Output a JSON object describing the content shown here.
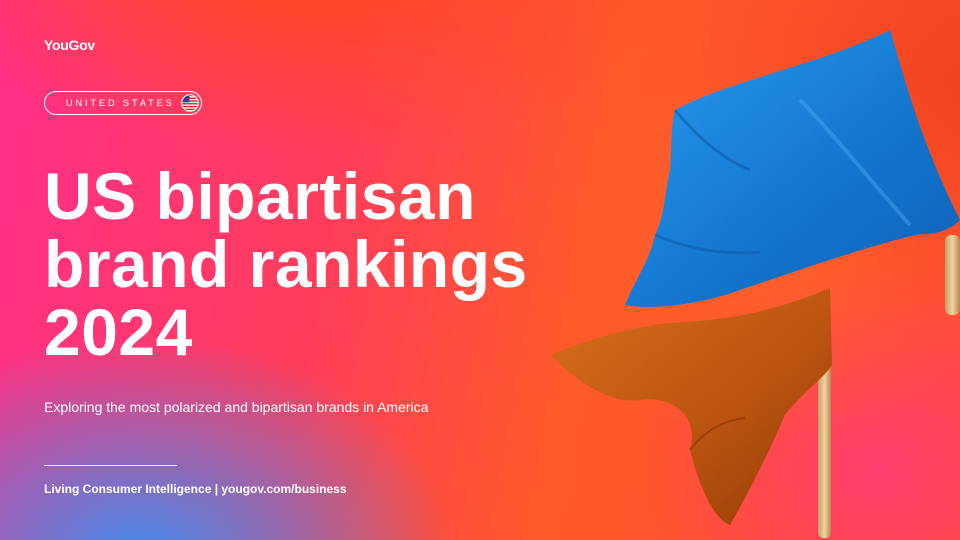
{
  "brand": {
    "logo_text": "YouGov"
  },
  "region": {
    "label": "UNITED STATES",
    "flag_icon": "us-flag-icon"
  },
  "title": {
    "lines": [
      "US bipartisan",
      "brand rankings",
      "2024"
    ]
  },
  "subtitle": "Exploring the most polarized and bipartisan brands in America",
  "footer": "Living Consumer Intelligence | yougov.com/business",
  "colors": {
    "text": "#ffffff",
    "flag_blue": "#1a7fd6",
    "flag_orange": "#c45a14",
    "pole": "#e6c08a"
  }
}
